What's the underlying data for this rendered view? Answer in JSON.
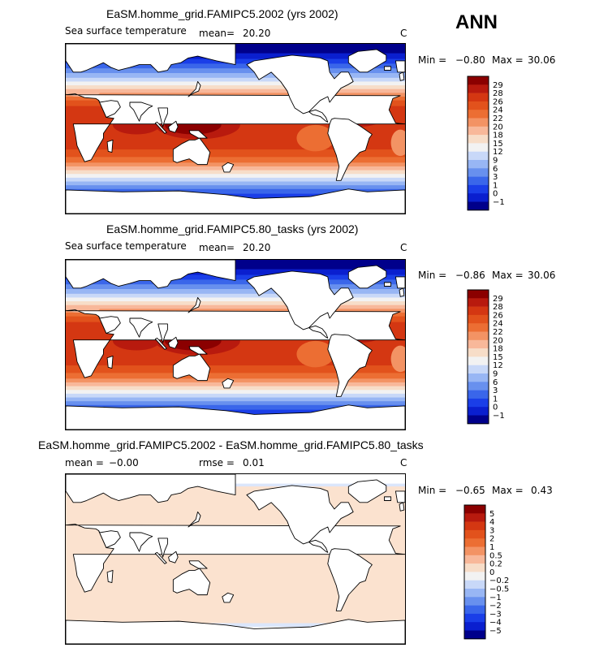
{
  "season": "ANN",
  "panels": [
    {
      "title": "EaSM.homme_grid.FAMIPC5.2002 (yrs 2002)",
      "variable": "Sea surface temperature",
      "stat1_label": "mean=",
      "stat1_value": "20.20",
      "stat2_label": "",
      "stat2_value": "",
      "units": "C",
      "min_label": "Min =",
      "min_value": "−0.80",
      "max_label": "Max =",
      "max_value": "30.06",
      "field": "sst",
      "levels": [
        "29",
        "28",
        "26",
        "24",
        "22",
        "20",
        "18",
        "15",
        "12",
        "9",
        "6",
        "3",
        "1",
        "0",
        "−1"
      ]
    },
    {
      "title": "EaSM.homme_grid.FAMIPC5.80_tasks (yrs 2002)",
      "variable": "Sea surface temperature",
      "stat1_label": "mean=",
      "stat1_value": "20.20",
      "stat2_label": "",
      "stat2_value": "",
      "units": "C",
      "min_label": "Min =",
      "min_value": "−0.86",
      "max_label": "Max =",
      "max_value": "30.06",
      "field": "sst",
      "levels": [
        "29",
        "28",
        "26",
        "24",
        "22",
        "20",
        "18",
        "15",
        "12",
        "9",
        "6",
        "3",
        "1",
        "0",
        "−1"
      ]
    },
    {
      "title": "EaSM.homme_grid.FAMIPC5.2002 - EaSM.homme_grid.FAMIPC5.80_tasks",
      "variable": "",
      "stat1_label": "mean =",
      "stat1_value": "−0.00",
      "stat2_label": "rmse =",
      "stat2_value": "0.01",
      "units": "C",
      "min_label": "Min =",
      "min_value": "−0.65",
      "max_label": "Max =",
      "max_value": "0.43",
      "field": "diff",
      "levels": [
        "5",
        "4",
        "3",
        "2",
        "1",
        "0.5",
        "0.2",
        "0",
        "−0.2",
        "−0.5",
        "−1",
        "−2",
        "−3",
        "−4",
        "−5"
      ]
    }
  ],
  "colorbar_colors": [
    "#8b0000",
    "#b81a0e",
    "#d43712",
    "#e2521c",
    "#ec6e33",
    "#f39364",
    "#f8b89a",
    "#f7ddc8",
    "#f2f2f2",
    "#c8d8f8",
    "#98b6f4",
    "#6890ee",
    "#3a66ea",
    "#1a3ee8",
    "#0a1fcf",
    "#00008b"
  ]
}
